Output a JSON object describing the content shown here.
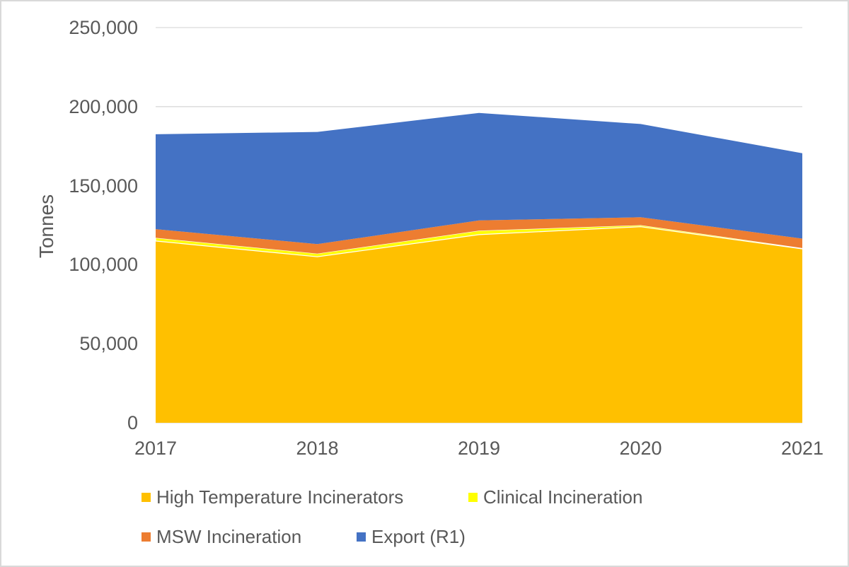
{
  "colors": {
    "background": "#FFFFFF",
    "border": "#D9D9D9",
    "grid": "#D9D9D9",
    "text": "#595959"
  },
  "chart_data": {
    "type": "area",
    "stacked": true,
    "title": "",
    "ylabel": "Tonnes",
    "xlabel": "",
    "x": [
      2017,
      2018,
      2019,
      2020,
      2021
    ],
    "series": [
      {
        "name": "High Temperature Incinerators",
        "color": "#FFC000",
        "values": [
          115000,
          105000,
          119000,
          124000,
          110000
        ]
      },
      {
        "name": "Clinical Incineration",
        "color": "#FFFF00",
        "edge_color": "#FFFFFF",
        "values": [
          2000,
          2000,
          2500,
          1000,
          500
        ]
      },
      {
        "name": "MSW Incineration",
        "color": "#ED7D31",
        "values": [
          5500,
          6000,
          6500,
          5000,
          6000
        ]
      },
      {
        "name": "Export (R1)",
        "color": "#4472C4",
        "values": [
          60000,
          71000,
          68000,
          59000,
          54000
        ]
      }
    ],
    "totals": [
      182500,
      184000,
      196000,
      189000,
      170500
    ],
    "ylim": [
      0,
      250000
    ],
    "ytick_interval": 50000,
    "ytick_labels": [
      "0",
      "50,000",
      "100,000",
      "150,000",
      "200,000",
      "250,000"
    ],
    "grid": "horizontal",
    "legend_position": "bottom"
  }
}
